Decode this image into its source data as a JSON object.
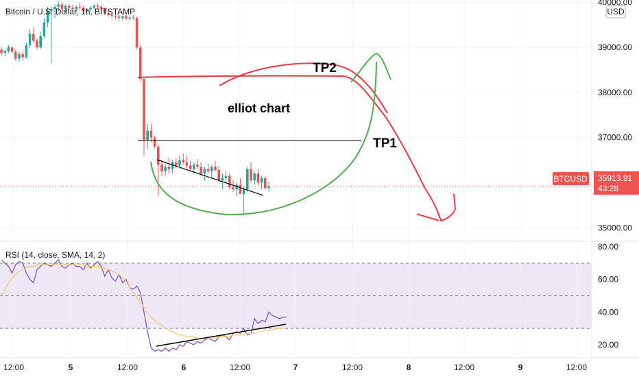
{
  "chart_data": [
    {
      "type": "candlestick",
      "title": "Bitcoin / U.S. Dollar, 1h, BITSTAMP",
      "ylim": [
        34700,
        40050
      ],
      "y_ticks": [
        "40000.00",
        "39000.00",
        "38000.00",
        "37000.00",
        "35000.00"
      ],
      "y_tick_values": [
        40000,
        39000,
        38000,
        37000,
        35000
      ],
      "currency_label": "USD",
      "price_tag": {
        "symbol": "BTCUSD",
        "price": "35913.91",
        "countdown": "43:28",
        "value": 35913.91
      },
      "x_ticks": [
        "12:00",
        "5",
        "12:00",
        "6",
        "12:00",
        "7",
        "12:00",
        "8",
        "12:00",
        "9",
        "12:00"
      ],
      "x_tick_emphasis": [
        false,
        true,
        false,
        true,
        false,
        true,
        false,
        true,
        false,
        true,
        false
      ],
      "grid": true,
      "candles": [
        [
          38950,
          39000,
          38820,
          38880
        ],
        [
          38880,
          38960,
          38800,
          38920
        ],
        [
          38920,
          39050,
          38880,
          39000
        ],
        [
          39000,
          39020,
          38860,
          38900
        ],
        [
          38900,
          38950,
          38700,
          38750
        ],
        [
          38750,
          38900,
          38680,
          38850
        ],
        [
          38850,
          38920,
          38700,
          38780
        ],
        [
          38780,
          39100,
          38750,
          39050
        ],
        [
          39050,
          39400,
          38980,
          39300
        ],
        [
          39300,
          39450,
          39100,
          39150
        ],
        [
          39150,
          39200,
          38950,
          39000
        ],
        [
          39000,
          39350,
          38960,
          39250
        ],
        [
          39250,
          39650,
          39200,
          39550
        ],
        [
          39550,
          39900,
          39450,
          39800
        ],
        [
          39800,
          39900,
          38650,
          39850
        ],
        [
          39850,
          39950,
          39650,
          39900
        ],
        [
          39900,
          40020,
          39800,
          39950
        ],
        [
          39950,
          39990,
          39820,
          39850
        ],
        [
          39850,
          39950,
          39780,
          39920
        ],
        [
          39920,
          39960,
          39830,
          39880
        ],
        [
          39880,
          39950,
          39800,
          39850
        ],
        [
          39850,
          39940,
          39780,
          39900
        ],
        [
          39900,
          39980,
          39830,
          39880
        ],
        [
          39880,
          39920,
          39750,
          39800
        ],
        [
          39800,
          39870,
          39720,
          39840
        ],
        [
          39840,
          39920,
          39800,
          39880
        ],
        [
          39880,
          39960,
          39840,
          39920
        ],
        [
          39920,
          39980,
          39860,
          39900
        ],
        [
          39900,
          39950,
          39800,
          39850
        ],
        [
          39850,
          39880,
          39720,
          39750
        ],
        [
          39750,
          39820,
          39680,
          39720
        ],
        [
          39720,
          39780,
          39650,
          39700
        ],
        [
          39700,
          39760,
          39620,
          39680
        ],
        [
          39680,
          39740,
          39580,
          39650
        ],
        [
          39650,
          39700,
          39600,
          39690
        ],
        [
          39690,
          39720,
          39610,
          39640
        ],
        [
          39640,
          39700,
          39600,
          39660
        ],
        [
          39660,
          39710,
          39620,
          39650
        ],
        [
          39650,
          39680,
          38950,
          39000
        ],
        [
          39000,
          39050,
          38250,
          38300
        ],
        [
          38300,
          38350,
          36600,
          36950
        ],
        [
          36950,
          37300,
          36750,
          37150
        ],
        [
          37150,
          37300,
          36900,
          37000
        ],
        [
          37000,
          37050,
          36750,
          36800
        ],
        [
          36800,
          36850,
          35700,
          36400
        ],
        [
          36400,
          36500,
          36150,
          36250
        ],
        [
          36250,
          36420,
          36150,
          36350
        ],
        [
          36350,
          36550,
          36200,
          36300
        ],
        [
          36300,
          36500,
          36200,
          36450
        ],
        [
          36450,
          36550,
          36320,
          36380
        ],
        [
          36380,
          36600,
          36300,
          36500
        ],
        [
          36500,
          36650,
          36400,
          36450
        ],
        [
          36450,
          36600,
          36320,
          36380
        ],
        [
          36380,
          36500,
          36250,
          36300
        ],
        [
          36300,
          36450,
          36200,
          36400
        ],
        [
          36400,
          36520,
          36300,
          36350
        ],
        [
          36350,
          36450,
          36150,
          36200
        ],
        [
          36200,
          36350,
          36050,
          36300
        ],
        [
          36300,
          36420,
          36200,
          36250
        ],
        [
          36250,
          36400,
          36100,
          36350
        ],
        [
          36350,
          36480,
          36250,
          36280
        ],
        [
          36280,
          36380,
          36000,
          36050
        ],
        [
          36050,
          36200,
          35850,
          36100
        ],
        [
          36100,
          36250,
          36000,
          36150
        ],
        [
          36150,
          36200,
          35850,
          35900
        ],
        [
          35900,
          36050,
          35800,
          35850
        ],
        [
          35850,
          36000,
          35700,
          35950
        ],
        [
          35950,
          36100,
          35800,
          35750
        ],
        [
          35750,
          35900,
          35300,
          35850
        ],
        [
          35850,
          36350,
          35800,
          36300
        ],
        [
          36300,
          36450,
          36000,
          36050
        ],
        [
          36050,
          36250,
          35950,
          36200
        ],
        [
          36200,
          36300,
          35950,
          36000
        ],
        [
          36000,
          36150,
          35850,
          36100
        ],
        [
          36100,
          36150,
          35850,
          35880
        ],
        [
          35880,
          36020,
          35800,
          35920
        ]
      ]
    },
    {
      "type": "line",
      "title": "RSI (14, close, SMA, 14, 2)",
      "ylim": [
        12,
        83
      ],
      "y_ticks": [
        "80.00",
        "60.00",
        "40.00",
        "20.00"
      ],
      "y_tick_values": [
        80,
        60,
        40,
        20
      ],
      "band": [
        30,
        70
      ],
      "midline": 50,
      "series": [
        {
          "color": "#7e57c2",
          "values": [
            72,
            70,
            68,
            64,
            69,
            71,
            70,
            64,
            60,
            58,
            66,
            68,
            70,
            69,
            68,
            70,
            72,
            68,
            67,
            69,
            70,
            68,
            68,
            66,
            70,
            67,
            69,
            71,
            68,
            62,
            66,
            61,
            59,
            63,
            58,
            60,
            55,
            54,
            56,
            52,
            40,
            28,
            18,
            16,
            17,
            16,
            18,
            16,
            18,
            17,
            20,
            19,
            22,
            21,
            20,
            22,
            21,
            23,
            24,
            23,
            22,
            25,
            26,
            25,
            23,
            27,
            28,
            27,
            30,
            26,
            27,
            36,
            33,
            35,
            34,
            40,
            38,
            37,
            36,
            37,
            37
          ]
        },
        {
          "color": "#f7c873",
          "values": [
            50,
            54,
            58,
            61,
            63,
            65,
            66,
            67,
            68,
            68,
            69,
            69,
            69,
            69,
            69,
            69,
            69,
            69,
            69,
            69,
            69,
            69,
            69,
            69,
            68,
            68,
            68,
            68,
            67,
            67,
            66,
            65,
            64,
            63,
            61,
            59,
            55,
            52,
            49,
            46,
            43,
            40,
            37,
            35,
            33,
            32,
            30,
            29,
            28,
            27,
            26,
            26,
            25,
            25,
            25,
            24,
            24,
            24,
            24,
            24,
            25,
            25,
            25,
            25,
            25,
            26,
            26,
            26,
            26,
            27,
            27,
            27,
            28,
            28,
            29,
            29,
            29,
            30,
            30,
            30
          ]
        }
      ]
    }
  ],
  "annotations": {
    "elliot": "elliot chart",
    "tp1": "TP1",
    "tp2": "TP2"
  },
  "colors": {
    "up": "#26a69a",
    "down": "#ef5350",
    "price_tag": "#ef5350",
    "drawing_red": "#f23645",
    "drawing_green": "#4caf50",
    "rsi_band": "#ede7f6"
  }
}
